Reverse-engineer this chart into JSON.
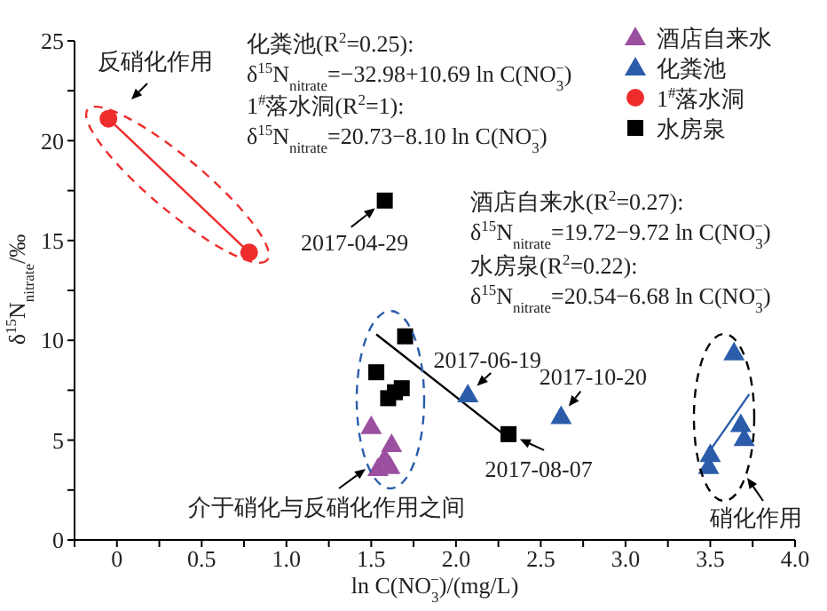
{
  "chart_data": {
    "type": "scatter",
    "xlabel": "ln C(NO$_{3}$$^{−}$)/(mg/L)",
    "ylabel": "δ$^{15}$N$_{nitrate}$/‰",
    "xlim": [
      -0.25,
      4.0
    ],
    "xticks": [
      {
        "value": -0.25,
        "label": null
      },
      0,
      {
        "value": 0.25,
        "label": null
      },
      {
        "value": 0.5,
        "label": "0.5"
      },
      {
        "value": 0.75,
        "label": null
      },
      {
        "value": 1,
        "label": "1.0"
      },
      {
        "value": 1.25,
        "label": null
      },
      {
        "value": 1.5,
        "label": "1.5"
      },
      {
        "value": 1.75,
        "label": null
      },
      {
        "value": 2,
        "label": "2.0"
      },
      {
        "value": 2.25,
        "label": null
      },
      {
        "value": 2.5,
        "label": "2.5"
      },
      {
        "value": 2.75,
        "label": null
      },
      {
        "value": 3,
        "label": "3.0"
      },
      {
        "value": 3.25,
        "label": null
      },
      {
        "value": 3.5,
        "label": "3.5"
      },
      {
        "value": 3.75,
        "label": null
      },
      {
        "value": 4,
        "label": "4.0"
      }
    ],
    "ylim": [
      0,
      25
    ],
    "yticks": [
      0,
      {
        "value": 2.5,
        "label": null
      },
      5,
      {
        "value": 7.5,
        "label": null
      },
      10,
      {
        "value": 12.5,
        "label": null
      },
      15,
      {
        "value": 17.5,
        "label": null
      },
      20,
      {
        "value": 22.5,
        "label": null
      },
      25
    ],
    "legend": "top right",
    "series": [
      {
        "name": "酒店自来水",
        "marker": "triangle",
        "color": "#9b4f9f",
        "x": [
          1.5,
          1.62,
          1.58,
          1.54,
          1.61
        ],
        "values": [
          5.7,
          4.8,
          4.1,
          3.6,
          3.7
        ]
      },
      {
        "name": "化粪池",
        "marker": "triangle",
        "color": "#2a5caa",
        "x": [
          2.07,
          2.62,
          3.64,
          3.68,
          3.7,
          3.5,
          3.49
        ],
        "values": [
          7.3,
          6.2,
          9.4,
          5.8,
          5.1,
          4.3,
          3.7
        ]
      },
      {
        "name": "1$^{#}$落水洞",
        "marker": "circle",
        "color": "#ee2c2c",
        "x": [
          -0.05,
          0.78
        ],
        "values": [
          21.1,
          14.4
        ]
      },
      {
        "name": "水房泉",
        "marker": "square",
        "color": "#000000",
        "x": [
          1.58,
          1.7,
          1.53,
          1.6,
          1.64,
          1.68,
          2.31
        ],
        "values": [
          17.0,
          10.2,
          8.4,
          7.1,
          7.4,
          7.6,
          5.3
        ]
      },
      {
        "type": "line",
        "color": "#ee2c2c",
        "x": [
          -0.05,
          0.78
        ],
        "values": [
          21.1,
          14.4
        ]
      },
      {
        "type": "line",
        "color": "#000000",
        "x": [
          1.53,
          2.31
        ],
        "values": [
          10.3,
          5.1
        ]
      },
      {
        "type": "line",
        "color": "#2a5caa",
        "x": [
          3.5,
          3.73
        ],
        "values": [
          4.5,
          7.3
        ]
      }
    ],
    "annotations": [
      "化粪池(R$^{2}$=0.25):",
      "δ$^{15}$N$_{nitrate}$=−32.98+10.69 ln C(NO$_{3}$$^{−}$)",
      "1$^{#}$落水洞(R$^{2}$=1):",
      "δ$^{15}$N$_{nitrate}$=20.73−8.10 ln C(NO$_{3}$$^{−}$)",
      "酒店自来水(R$^{2}$=0.27):",
      "δ$^{15}$N$_{nitrate}$=19.72−9.72 ln C(NO$_{3}$$^{−}$)",
      "水房泉(R$^{2}$=0.22):",
      "δ$^{15}$N$_{nitrate}$=20.54−6.68 ln C(NO$_{3}$$^{−}$)",
      "反硝化作用",
      "介于硝化与反硝化作用之间",
      "硝化作用",
      {
        "text": "2017-04-29",
        "x": 1.58,
        "y": 17.0
      },
      {
        "text": "2017-06-19",
        "x": 2.07,
        "y": 7.3
      },
      {
        "text": "2017-10-20",
        "x": 2.62,
        "y": 6.2
      },
      {
        "text": "2017-08-07",
        "x": 2.31,
        "y": 5.3
      }
    ]
  }
}
